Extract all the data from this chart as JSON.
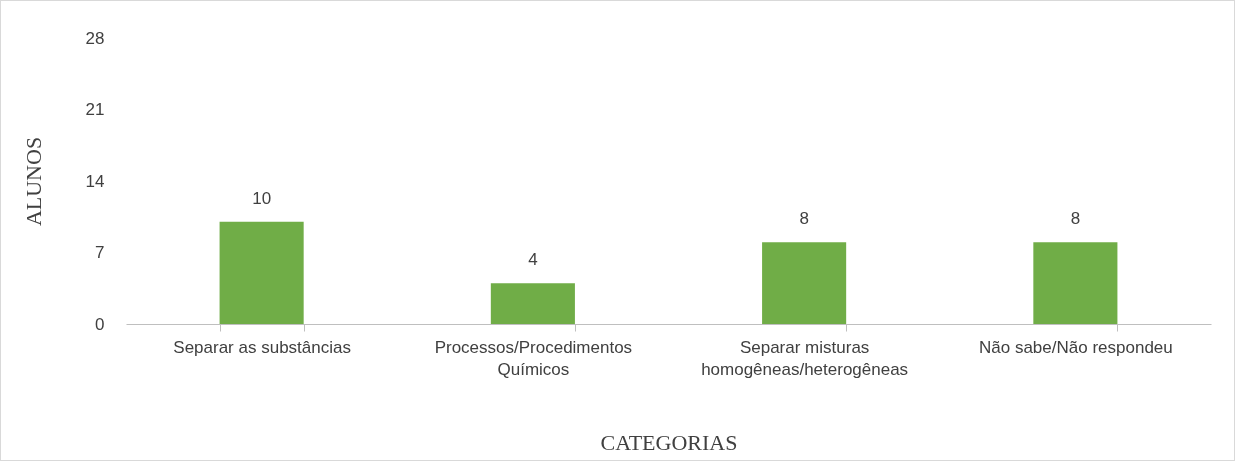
{
  "chart_data": {
    "type": "bar",
    "categories": [
      "Separar as substâncias",
      "Processos/Procedimentos Químicos",
      "Separar misturas homogêneas/heterogêneas",
      "Não sabe/Não respondeu"
    ],
    "values": [
      10,
      4,
      8,
      8
    ],
    "color": "#70ad47",
    "xlabel": "CATEGORIAS",
    "ylabel": "ALUNOS",
    "ylim": [
      0,
      28
    ],
    "yticks": [
      0,
      7,
      14,
      21,
      28
    ],
    "data_labels": true
  }
}
